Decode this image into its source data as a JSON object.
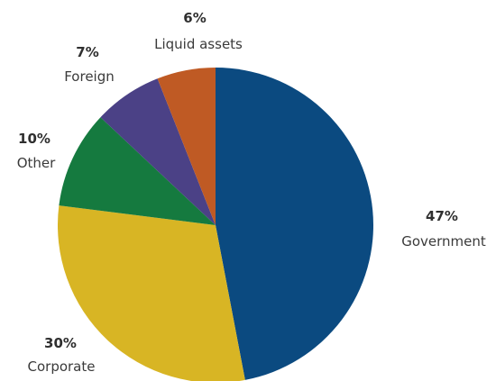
{
  "chart_data": {
    "type": "pie",
    "slices": [
      {
        "label": "Government",
        "value": 47,
        "value_label": "47%",
        "color": "#0b4a80"
      },
      {
        "label": "Corporate",
        "value": 30,
        "value_label": "30%",
        "color": "#d8b524"
      },
      {
        "label": "Other",
        "value": 10,
        "value_label": "10%",
        "color": "#157a3f"
      },
      {
        "label": "Foreign",
        "value": 7,
        "value_label": "7%",
        "color": "#4b4186"
      },
      {
        "label": "Liquid assets",
        "value": 6,
        "value_label": "6%",
        "color": "#bf5a24"
      }
    ],
    "start": "12 o'clock",
    "direction": "clockwise",
    "legend": "none"
  }
}
